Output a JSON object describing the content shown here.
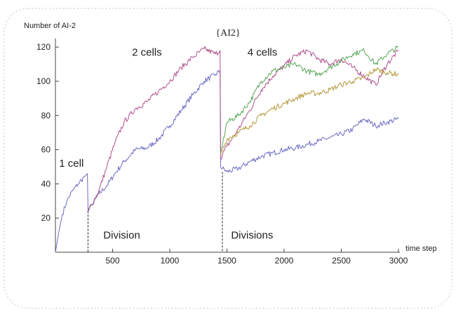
{
  "chart_data": {
    "type": "line",
    "title": "{AI2}",
    "xlabel": "time step",
    "ylabel": "Number of AI-2",
    "xlim": [
      0,
      3000
    ],
    "ylim": [
      0,
      125
    ],
    "xticks": [
      500,
      1000,
      1500,
      2000,
      2500,
      3000
    ],
    "yticks": [
      20,
      40,
      60,
      80,
      100,
      120
    ],
    "grid": false,
    "colors": {
      "blue": "#6b6bc4",
      "purple": "#b0508c",
      "green": "#5aa85a",
      "gold": "#b59a3c"
    },
    "series": [
      {
        "color": "blue",
        "points": [
          [
            0,
            0
          ],
          [
            30,
            12
          ],
          [
            60,
            22
          ],
          [
            100,
            30
          ],
          [
            150,
            36
          ],
          [
            200,
            40
          ],
          [
            250,
            44
          ],
          [
            280,
            46
          ],
          [
            285,
            24
          ],
          [
            320,
            28
          ],
          [
            380,
            34
          ],
          [
            450,
            39
          ],
          [
            520,
            46
          ],
          [
            600,
            53
          ],
          [
            700,
            60
          ],
          [
            800,
            61
          ],
          [
            900,
            66
          ],
          [
            1000,
            74
          ],
          [
            1100,
            83
          ],
          [
            1200,
            92
          ],
          [
            1300,
            100
          ],
          [
            1400,
            104
          ],
          [
            1440,
            106
          ],
          [
            1445,
            50
          ],
          [
            1500,
            47
          ],
          [
            1600,
            49
          ],
          [
            1700,
            53
          ],
          [
            1800,
            56
          ],
          [
            1900,
            58
          ],
          [
            2000,
            60
          ],
          [
            2100,
            61
          ],
          [
            2200,
            63
          ],
          [
            2300,
            65
          ],
          [
            2400,
            67
          ],
          [
            2500,
            69
          ],
          [
            2600,
            72
          ],
          [
            2700,
            78
          ],
          [
            2800,
            74
          ],
          [
            2900,
            76
          ],
          [
            3000,
            78
          ]
        ]
      },
      {
        "color": "purple",
        "points": [
          [
            285,
            24
          ],
          [
            320,
            28
          ],
          [
            380,
            36
          ],
          [
            450,
            50
          ],
          [
            520,
            64
          ],
          [
            600,
            76
          ],
          [
            700,
            84
          ],
          [
            800,
            88
          ],
          [
            900,
            94
          ],
          [
            1000,
            100
          ],
          [
            1100,
            108
          ],
          [
            1200,
            114
          ],
          [
            1300,
            119
          ],
          [
            1400,
            116
          ],
          [
            1440,
            118
          ],
          [
            1445,
            55
          ],
          [
            1500,
            62
          ],
          [
            1600,
            72
          ],
          [
            1700,
            83
          ],
          [
            1800,
            95
          ],
          [
            1900,
            103
          ],
          [
            2000,
            109
          ],
          [
            2100,
            115
          ],
          [
            2200,
            118
          ],
          [
            2300,
            113
          ],
          [
            2400,
            110
          ],
          [
            2500,
            113
          ],
          [
            2600,
            108
          ],
          [
            2700,
            103
          ],
          [
            2800,
            98
          ],
          [
            2900,
            110
          ],
          [
            3000,
            118
          ]
        ]
      },
      {
        "color": "green",
        "points": [
          [
            1445,
            58
          ],
          [
            1500,
            76
          ],
          [
            1600,
            80
          ],
          [
            1700,
            88
          ],
          [
            1800,
            100
          ],
          [
            1900,
            106
          ],
          [
            2000,
            108
          ],
          [
            2100,
            110
          ],
          [
            2200,
            106
          ],
          [
            2300,
            104
          ],
          [
            2400,
            108
          ],
          [
            2500,
            112
          ],
          [
            2600,
            116
          ],
          [
            2700,
            118
          ],
          [
            2800,
            110
          ],
          [
            2900,
            116
          ],
          [
            3000,
            120
          ]
        ]
      },
      {
        "color": "gold",
        "points": [
          [
            1445,
            57
          ],
          [
            1500,
            66
          ],
          [
            1600,
            70
          ],
          [
            1700,
            74
          ],
          [
            1800,
            80
          ],
          [
            1900,
            84
          ],
          [
            2000,
            87
          ],
          [
            2100,
            90
          ],
          [
            2200,
            93
          ],
          [
            2300,
            93
          ],
          [
            2400,
            95
          ],
          [
            2500,
            98
          ],
          [
            2600,
            100
          ],
          [
            2700,
            102
          ],
          [
            2800,
            107
          ],
          [
            2900,
            105
          ],
          [
            3000,
            104
          ]
        ]
      }
    ],
    "annotations": [
      {
        "text": "1 cell",
        "x": 140,
        "y": 50
      },
      {
        "text": "2 cells",
        "x": 800,
        "y": 115
      },
      {
        "text": "4 cells",
        "x": 1810,
        "y": 115
      },
      {
        "text": "Division",
        "x": 580,
        "y": 8
      },
      {
        "text": "Divisions",
        "x": 1720,
        "y": 8
      }
    ],
    "division_markers": [
      {
        "x": 285,
        "y_top": 24
      },
      {
        "x": 1460,
        "y_top": 47
      }
    ]
  }
}
